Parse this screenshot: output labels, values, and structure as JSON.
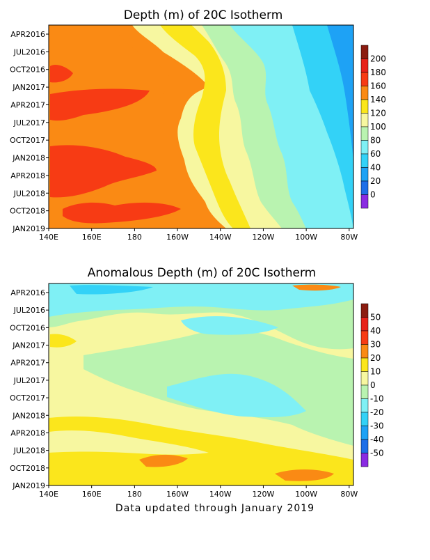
{
  "footer": "Data updated through January 2019",
  "chart_data": [
    {
      "type": "heatmap",
      "title": "Depth (m) of 20C Isotherm",
      "xlabel": "",
      "ylabel": "",
      "x_tick_labels": [
        "140E",
        "160E",
        "180",
        "160W",
        "140W",
        "120W",
        "100W",
        "80W"
      ],
      "x_tick_positions_lon": [
        140,
        160,
        180,
        200,
        220,
        240,
        260,
        280
      ],
      "xlim_lon": [
        140,
        282
      ],
      "y_tick_labels": [
        "APR2016",
        "JUL2016",
        "OCT2016",
        "JAN2017",
        "APR2017",
        "JUL2017",
        "OCT2017",
        "JAN2018",
        "APR2018",
        "JUL2018",
        "OCT2018",
        "JAN2019"
      ],
      "colorbar": {
        "levels": [
          0,
          20,
          40,
          60,
          80,
          100,
          120,
          140,
          160,
          180,
          200
        ],
        "colors": [
          "#8a2be2",
          "#1e6fe8",
          "#1ea2f5",
          "#33d2f7",
          "#7ff0f5",
          "#b9f3b0",
          "#f7f7a0",
          "#fbe61c",
          "#fa8a14",
          "#f73b14",
          "#e8221a",
          "#8b1c10"
        ]
      },
      "bands": [
        {
          "lon": 140,
          "value": 160
        },
        {
          "lon": 150,
          "value": 170
        },
        {
          "lon": 160,
          "value": 170
        },
        {
          "lon": 170,
          "value": 170
        },
        {
          "lon": 180,
          "value": 165
        },
        {
          "lon": 190,
          "value": 155
        },
        {
          "lon": 200,
          "value": 140
        },
        {
          "lon": 210,
          "value": 125
        },
        {
          "lon": 220,
          "value": 110
        },
        {
          "lon": 230,
          "value": 95
        },
        {
          "lon": 240,
          "value": 80
        },
        {
          "lon": 250,
          "value": 70
        },
        {
          "lon": 260,
          "value": 60
        },
        {
          "lon": 270,
          "value": 55
        },
        {
          "lon": 280,
          "value": 45
        }
      ]
    },
    {
      "type": "heatmap",
      "title": "Anomalous Depth (m) of 20C Isotherm",
      "xlabel": "",
      "ylabel": "",
      "x_tick_labels": [
        "140E",
        "160E",
        "180",
        "160W",
        "140W",
        "120W",
        "100W",
        "80W"
      ],
      "x_tick_positions_lon": [
        140,
        160,
        180,
        200,
        220,
        240,
        260,
        280
      ],
      "xlim_lon": [
        140,
        282
      ],
      "y_tick_labels": [
        "APR2016",
        "JUL2016",
        "OCT2016",
        "JAN2017",
        "APR2017",
        "JUL2017",
        "OCT2017",
        "JAN2018",
        "APR2018",
        "JUL2018",
        "OCT2018",
        "JAN2019"
      ],
      "colorbar": {
        "levels": [
          -50,
          -40,
          -30,
          -20,
          -10,
          0,
          10,
          20,
          30,
          40,
          50
        ],
        "colors": [
          "#8a2be2",
          "#1e6fe8",
          "#1ea2f5",
          "#33d2f7",
          "#7ff0f5",
          "#b9f3b0",
          "#f7f7a0",
          "#fbe61c",
          "#fa8a14",
          "#f73b14",
          "#e8221a",
          "#8b1c10"
        ]
      }
    }
  ]
}
